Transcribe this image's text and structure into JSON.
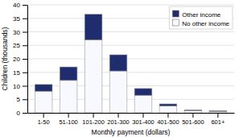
{
  "chart_data": {
    "type": "bar",
    "stacked": true,
    "xlabel": "Monthly payment (dollars)",
    "ylabel": "Children (thousands)",
    "categories": [
      "1-50",
      "51-100",
      "101-200",
      "201-300",
      "301-400",
      "401-500",
      "501-600",
      "601+"
    ],
    "series": [
      {
        "name": "No other income",
        "color": "#f8f8ff",
        "values": [
          8,
          12,
          27,
          15.5,
          6.5,
          2.5,
          0.8,
          0.5
        ]
      },
      {
        "name": "Other income",
        "color": "#1f2d6e",
        "values": [
          2.5,
          5,
          9.5,
          6,
          2.5,
          0.8,
          0.3,
          0.3
        ]
      }
    ],
    "ylim": [
      0,
      40
    ],
    "yticks": [
      0,
      5,
      10,
      15,
      20,
      25,
      30,
      35,
      40
    ],
    "grid": true,
    "legend": "upper right"
  }
}
